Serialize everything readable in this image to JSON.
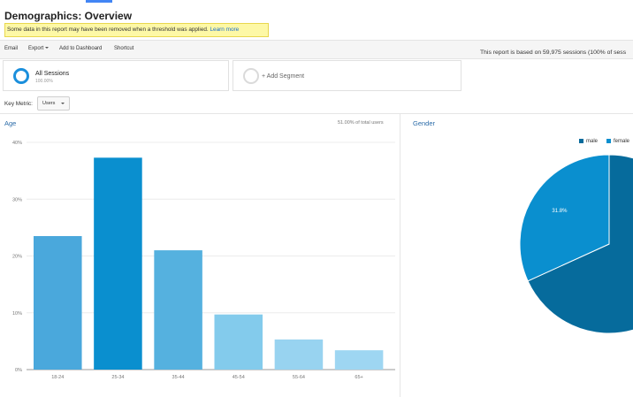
{
  "header": {
    "title": "Demographics: Overview",
    "notice_text": "Some data in this report may have been removed when a threshold was applied.",
    "notice_link": "Learn more"
  },
  "toolbar": {
    "email": "Email",
    "export": "Export",
    "add_to_dashboard": "Add to Dashboard",
    "shortcut": "Shortcut",
    "report_basis": "This report is based on 59,975 sessions (100% of sess"
  },
  "segments": {
    "active": {
      "name": "All Sessions",
      "sub": "100.00%"
    },
    "add_label": "+ Add Segment"
  },
  "key_metric": {
    "label": "Key Metric:",
    "value": "Users"
  },
  "age_panel": {
    "title": "Age",
    "total_note": "51.00% of total users"
  },
  "gender_panel": {
    "title": "Gender",
    "legend": [
      {
        "label": "male",
        "color": "#066b9c"
      },
      {
        "label": "female",
        "color": "#0a8fcf"
      }
    ]
  },
  "chart_data": [
    {
      "type": "bar",
      "title": "Age",
      "categories": [
        "18-24",
        "25-34",
        "35-44",
        "45-54",
        "55-64",
        "65+"
      ],
      "values": [
        23.5,
        37.3,
        21.0,
        9.7,
        5.3,
        3.4
      ],
      "yticks": [
        "0%",
        "10%",
        "20%",
        "30%",
        "40%"
      ],
      "ylim": [
        0,
        40
      ],
      "grid": true,
      "colors": [
        "#4aa8dc",
        "#0a8fcf",
        "#55b1df",
        "#83cbec",
        "#98d3f0",
        "#9ed6f2"
      ]
    },
    {
      "type": "pie",
      "title": "Gender",
      "slices": [
        {
          "label": "male",
          "value": 68.2,
          "color": "#066b9c"
        },
        {
          "label": "female",
          "value": 31.8,
          "color": "#0a8fcf",
          "display": "31.8%"
        }
      ]
    }
  ]
}
